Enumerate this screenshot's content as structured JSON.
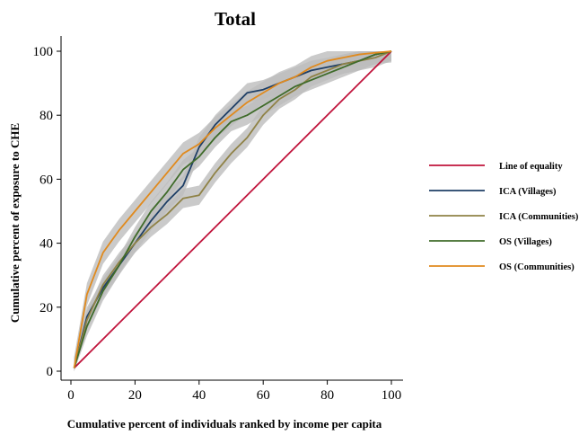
{
  "chart_data": {
    "type": "line",
    "title": "Total",
    "xlabel": "Cumulative percent of individuals ranked by income per capita",
    "ylabel": "Cumulative percent of exposure to CHE",
    "xlim": [
      0,
      100
    ],
    "ylim": [
      0,
      100
    ],
    "xticks": [
      "0",
      "20",
      "40",
      "60",
      "80",
      "100"
    ],
    "yticks": [
      "0",
      "20",
      "40",
      "60",
      "80",
      "100"
    ],
    "grid": false,
    "legend_position": "right",
    "confidence_band_color": "#bdbdbd",
    "series": [
      {
        "name": "Line of equality",
        "color": "#c0143c",
        "x": [
          1,
          100
        ],
        "y": [
          1,
          100
        ],
        "band": false
      },
      {
        "name": "ICA (Villages)",
        "color": "#1f3f66",
        "x": [
          1,
          5,
          10,
          15,
          20,
          25,
          30,
          35,
          40,
          45,
          50,
          55,
          60,
          65,
          70,
          75,
          80,
          85,
          90,
          95,
          100
        ],
        "y": [
          1,
          17,
          26,
          33,
          40,
          47,
          53,
          58,
          70,
          77,
          82,
          87,
          88,
          90,
          92,
          94,
          95,
          96,
          97,
          99,
          100
        ],
        "band": true,
        "band_width": 3
      },
      {
        "name": "ICA (Communities)",
        "color": "#8f8246",
        "x": [
          1,
          5,
          10,
          15,
          20,
          25,
          30,
          35,
          40,
          45,
          50,
          55,
          60,
          65,
          70,
          75,
          80,
          85,
          90,
          95,
          100
        ],
        "y": [
          1,
          16,
          27,
          34,
          40,
          45,
          49,
          54,
          55,
          62,
          68,
          73,
          80,
          85,
          88,
          92,
          94,
          96,
          97,
          98,
          100
        ],
        "band": true,
        "band_width": 3
      },
      {
        "name": "OS (Villages)",
        "color": "#3f6b2a",
        "x": [
          1,
          5,
          10,
          15,
          20,
          25,
          30,
          35,
          40,
          45,
          50,
          55,
          60,
          65,
          70,
          75,
          80,
          85,
          90,
          95,
          100
        ],
        "y": [
          1,
          14,
          25,
          33,
          42,
          50,
          56,
          63,
          67,
          73,
          78,
          80,
          83,
          86,
          89,
          91,
          93,
          95,
          97,
          99,
          100
        ],
        "band": true,
        "band_width": 3
      },
      {
        "name": "OS (Communities)",
        "color": "#e08a1e",
        "x": [
          1,
          5,
          10,
          15,
          20,
          25,
          30,
          35,
          40,
          45,
          50,
          55,
          60,
          65,
          70,
          75,
          80,
          85,
          90,
          95,
          100
        ],
        "y": [
          1,
          24,
          37,
          44,
          50,
          56,
          62,
          68,
          71,
          76,
          80,
          84,
          87,
          90,
          92,
          95,
          97,
          98,
          99,
          99.5,
          100
        ],
        "band": true,
        "band_width": 3.5
      }
    ]
  }
}
